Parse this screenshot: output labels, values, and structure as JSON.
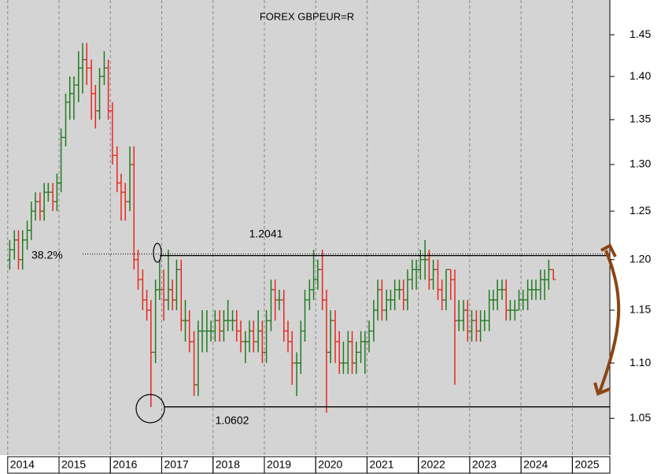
{
  "chart_data": {
    "type": "ohlc",
    "title": "FOREX GBPEUR=R",
    "log_y": true,
    "grid": true,
    "up_color": "#1f7a1f",
    "down_color": "#e8261e",
    "xlim": [
      2013.85,
      2025.73
    ],
    "xticks": [
      2014,
      2015,
      2016,
      2017,
      2018,
      2019,
      2020,
      2021,
      2022,
      2023,
      2024,
      2025
    ],
    "ylim": [
      1.018,
      1.493
    ],
    "yticks": [
      1.05,
      {
        "value": 1.1,
        "label": "1.10"
      },
      1.15,
      {
        "value": 1.2,
        "label": "1.20"
      },
      1.25,
      {
        "value": 1.3,
        "label": "1.30"
      },
      1.35,
      {
        "value": 1.4,
        "label": "1.40"
      },
      1.45
    ],
    "levels": [
      1.2041,
      1.0602
    ],
    "retracement_label": "38.2%",
    "x": [
      2014.04,
      2014.13,
      2014.21,
      2014.29,
      2014.38,
      2014.46,
      2014.54,
      2014.63,
      2014.71,
      2014.79,
      2014.88,
      2014.96,
      2015.04,
      2015.13,
      2015.21,
      2015.29,
      2015.38,
      2015.46,
      2015.54,
      2015.63,
      2015.71,
      2015.79,
      2015.88,
      2015.96,
      2016.04,
      2016.13,
      2016.21,
      2016.29,
      2016.38,
      2016.46,
      2016.54,
      2016.63,
      2016.71,
      2016.79,
      2016.88,
      2016.96,
      2017.04,
      2017.13,
      2017.21,
      2017.29,
      2017.38,
      2017.46,
      2017.54,
      2017.63,
      2017.71,
      2017.79,
      2017.88,
      2017.96,
      2018.04,
      2018.13,
      2018.21,
      2018.29,
      2018.38,
      2018.46,
      2018.54,
      2018.63,
      2018.71,
      2018.79,
      2018.88,
      2018.96,
      2019.04,
      2019.13,
      2019.21,
      2019.29,
      2019.38,
      2019.46,
      2019.54,
      2019.63,
      2019.71,
      2019.79,
      2019.88,
      2019.96,
      2020.04,
      2020.13,
      2020.21,
      2020.29,
      2020.38,
      2020.46,
      2020.54,
      2020.63,
      2020.71,
      2020.79,
      2020.88,
      2020.96,
      2021.04,
      2021.13,
      2021.21,
      2021.29,
      2021.38,
      2021.46,
      2021.54,
      2021.63,
      2021.71,
      2021.79,
      2021.88,
      2021.96,
      2022.04,
      2022.13,
      2022.21,
      2022.29,
      2022.38,
      2022.46,
      2022.54,
      2022.63,
      2022.71,
      2022.79,
      2022.88,
      2022.96,
      2023.04,
      2023.13,
      2023.21,
      2023.29,
      2023.38,
      2023.46,
      2023.54,
      2023.63,
      2023.71,
      2023.79,
      2023.88,
      2023.96,
      2024.04,
      2024.13,
      2024.21,
      2024.29,
      2024.38,
      2024.46,
      2024.54,
      2024.63
    ],
    "open": [
      1.2,
      1.21,
      1.22,
      1.2,
      1.22,
      1.23,
      1.25,
      1.26,
      1.25,
      1.27,
      1.27,
      1.26,
      1.28,
      1.33,
      1.37,
      1.38,
      1.39,
      1.41,
      1.42,
      1.41,
      1.38,
      1.36,
      1.4,
      1.41,
      1.36,
      1.31,
      1.28,
      1.27,
      1.26,
      1.3,
      1.2,
      1.18,
      1.16,
      1.15,
      1.11,
      1.17,
      1.17,
      1.16,
      1.17,
      1.16,
      1.19,
      1.14,
      1.14,
      1.12,
      1.08,
      1.13,
      1.13,
      1.13,
      1.13,
      1.14,
      1.13,
      1.14,
      1.14,
      1.14,
      1.13,
      1.12,
      1.12,
      1.13,
      1.12,
      1.13,
      1.11,
      1.14,
      1.17,
      1.16,
      1.16,
      1.13,
      1.12,
      1.1,
      1.1,
      1.13,
      1.16,
      1.17,
      1.18,
      1.19,
      1.16,
      1.11,
      1.14,
      1.12,
      1.1,
      1.1,
      1.12,
      1.1,
      1.11,
      1.12,
      1.12,
      1.13,
      1.15,
      1.17,
      1.15,
      1.16,
      1.16,
      1.17,
      1.17,
      1.16,
      1.18,
      1.19,
      1.19,
      1.2,
      1.2,
      1.18,
      1.19,
      1.17,
      1.16,
      1.19,
      1.18,
      1.14,
      1.14,
      1.15,
      1.13,
      1.14,
      1.13,
      1.14,
      1.14,
      1.16,
      1.16,
      1.17,
      1.17,
      1.15,
      1.15,
      1.15,
      1.16,
      1.16,
      1.17,
      1.17,
      1.17,
      1.18,
      1.18,
      1.19
    ],
    "high": [
      1.22,
      1.23,
      1.23,
      1.23,
      1.24,
      1.26,
      1.27,
      1.27,
      1.28,
      1.28,
      1.28,
      1.29,
      1.34,
      1.38,
      1.4,
      1.4,
      1.43,
      1.44,
      1.44,
      1.42,
      1.39,
      1.41,
      1.43,
      1.42,
      1.37,
      1.32,
      1.29,
      1.28,
      1.32,
      1.32,
      1.21,
      1.19,
      1.17,
      1.16,
      1.18,
      1.2,
      1.19,
      1.21,
      1.18,
      1.2,
      1.2,
      1.16,
      1.15,
      1.13,
      1.14,
      1.15,
      1.15,
      1.14,
      1.15,
      1.15,
      1.15,
      1.16,
      1.15,
      1.15,
      1.14,
      1.13,
      1.14,
      1.14,
      1.15,
      1.14,
      1.15,
      1.18,
      1.18,
      1.17,
      1.17,
      1.14,
      1.13,
      1.11,
      1.14,
      1.17,
      1.18,
      1.21,
      1.2,
      1.21,
      1.17,
      1.15,
      1.15,
      1.13,
      1.12,
      1.13,
      1.13,
      1.12,
      1.13,
      1.13,
      1.14,
      1.16,
      1.18,
      1.18,
      1.17,
      1.17,
      1.18,
      1.18,
      1.18,
      1.19,
      1.2,
      1.2,
      1.21,
      1.22,
      1.21,
      1.2,
      1.2,
      1.18,
      1.19,
      1.19,
      1.19,
      1.16,
      1.16,
      1.16,
      1.15,
      1.15,
      1.15,
      1.15,
      1.17,
      1.17,
      1.18,
      1.18,
      1.18,
      1.16,
      1.16,
      1.17,
      1.17,
      1.18,
      1.18,
      1.18,
      1.19,
      1.19,
      1.2,
      1.19
    ],
    "low": [
      1.19,
      1.2,
      1.19,
      1.19,
      1.21,
      1.22,
      1.24,
      1.24,
      1.24,
      1.26,
      1.25,
      1.25,
      1.27,
      1.32,
      1.35,
      1.35,
      1.37,
      1.38,
      1.39,
      1.35,
      1.34,
      1.35,
      1.39,
      1.35,
      1.3,
      1.27,
      1.24,
      1.24,
      1.25,
      1.19,
      1.17,
      1.15,
      1.14,
      1.06,
      1.1,
      1.16,
      1.14,
      1.15,
      1.15,
      1.15,
      1.13,
      1.12,
      1.11,
      1.07,
      1.07,
      1.11,
      1.11,
      1.12,
      1.12,
      1.12,
      1.12,
      1.13,
      1.13,
      1.12,
      1.11,
      1.1,
      1.11,
      1.11,
      1.11,
      1.1,
      1.1,
      1.13,
      1.14,
      1.15,
      1.12,
      1.11,
      1.08,
      1.07,
      1.09,
      1.12,
      1.15,
      1.16,
      1.17,
      1.15,
      1.055,
      1.1,
      1.1,
      1.09,
      1.09,
      1.09,
      1.09,
      1.09,
      1.1,
      1.09,
      1.11,
      1.12,
      1.14,
      1.14,
      1.14,
      1.15,
      1.15,
      1.16,
      1.15,
      1.15,
      1.17,
      1.17,
      1.18,
      1.18,
      1.17,
      1.17,
      1.16,
      1.15,
      1.15,
      1.16,
      1.08,
      1.13,
      1.13,
      1.12,
      1.12,
      1.12,
      1.12,
      1.13,
      1.13,
      1.15,
      1.15,
      1.16,
      1.14,
      1.14,
      1.14,
      1.15,
      1.15,
      1.15,
      1.16,
      1.16,
      1.16,
      1.16,
      1.17,
      1.18
    ],
    "close": [
      1.21,
      1.22,
      1.2,
      1.22,
      1.23,
      1.25,
      1.26,
      1.25,
      1.27,
      1.27,
      1.26,
      1.28,
      1.33,
      1.37,
      1.38,
      1.39,
      1.41,
      1.42,
      1.41,
      1.38,
      1.36,
      1.4,
      1.41,
      1.36,
      1.31,
      1.28,
      1.27,
      1.26,
      1.3,
      1.2,
      1.18,
      1.16,
      1.15,
      1.11,
      1.17,
      1.17,
      1.16,
      1.17,
      1.16,
      1.19,
      1.14,
      1.14,
      1.12,
      1.08,
      1.13,
      1.13,
      1.13,
      1.13,
      1.14,
      1.13,
      1.14,
      1.14,
      1.14,
      1.13,
      1.12,
      1.12,
      1.13,
      1.12,
      1.13,
      1.11,
      1.14,
      1.17,
      1.16,
      1.16,
      1.13,
      1.12,
      1.1,
      1.1,
      1.13,
      1.16,
      1.17,
      1.18,
      1.19,
      1.16,
      1.11,
      1.14,
      1.12,
      1.1,
      1.1,
      1.12,
      1.1,
      1.11,
      1.12,
      1.12,
      1.13,
      1.15,
      1.17,
      1.15,
      1.16,
      1.16,
      1.17,
      1.17,
      1.16,
      1.18,
      1.19,
      1.19,
      1.2,
      1.2,
      1.18,
      1.19,
      1.17,
      1.16,
      1.19,
      1.18,
      1.14,
      1.14,
      1.15,
      1.13,
      1.14,
      1.13,
      1.14,
      1.14,
      1.16,
      1.16,
      1.17,
      1.17,
      1.15,
      1.15,
      1.15,
      1.16,
      1.16,
      1.17,
      1.17,
      1.17,
      1.18,
      1.18,
      1.19,
      1.18
    ]
  }
}
